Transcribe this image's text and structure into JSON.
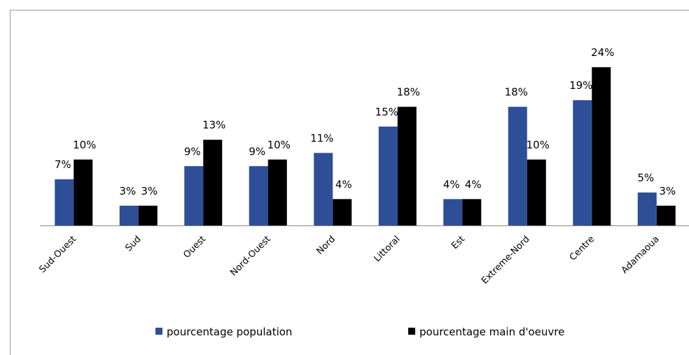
{
  "chart_data": {
    "type": "bar",
    "categories": [
      "Sud-Ouest",
      "Sud",
      "Ouest",
      "Nord-Ouest",
      "Nord",
      "Littoral",
      "Est",
      "Extreme-Nord",
      "Centre",
      "Adamaoua"
    ],
    "series": [
      {
        "name": "pourcentage population",
        "color": "#2e4f97",
        "values": [
          7,
          3,
          9,
          9,
          11,
          15,
          4,
          18,
          19,
          5
        ],
        "value_labels": [
          "7%",
          "3%",
          "9%",
          "9%",
          "11%",
          "15%",
          "4%",
          "18%",
          "19%",
          "5%"
        ]
      },
      {
        "name": "pourcentage main d'oeuvre",
        "color": "#000000",
        "values": [
          10,
          3,
          13,
          10,
          4,
          18,
          4,
          10,
          24,
          3
        ],
        "value_labels": [
          "10%",
          "3%",
          "13%",
          "10%",
          "4%",
          "18%",
          "4%",
          "10%",
          "24%",
          "3%"
        ]
      }
    ],
    "legend": "bottom"
  }
}
